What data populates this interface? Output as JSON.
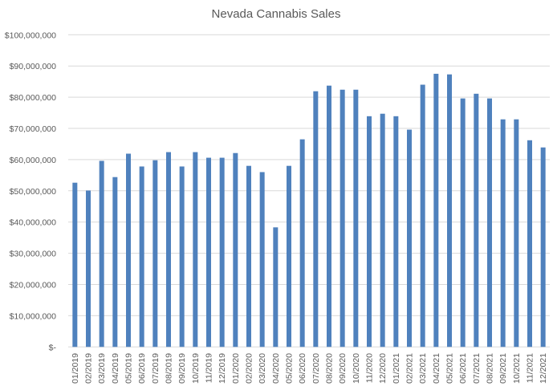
{
  "chart_data": {
    "type": "bar",
    "title": "Nevada Cannabis Sales",
    "xlabel": "",
    "ylabel": "",
    "ylim": [
      0,
      100000000
    ],
    "grid": true,
    "color": "#4f81bd",
    "y_ticks": [
      0,
      10000000,
      20000000,
      30000000,
      40000000,
      50000000,
      60000000,
      70000000,
      80000000,
      90000000,
      100000000
    ],
    "y_tick_labels": [
      "$-",
      "$10,000,000",
      "$20,000,000",
      "$30,000,000",
      "$40,000,000",
      "$50,000,000",
      "$60,000,000",
      "$70,000,000",
      "$80,000,000",
      "$90,000,000",
      "$100,000,000"
    ],
    "categories": [
      "01/2019",
      "02/2019",
      "03/2019",
      "04/2019",
      "05/2019",
      "06/2019",
      "07/2019",
      "08/2019",
      "09/2019",
      "10/2019",
      "11/2019",
      "12/2019",
      "01/2020",
      "02/2020",
      "03/2020",
      "04/2020",
      "05/2020",
      "06/2020",
      "07/2020",
      "08/2020",
      "09/2020",
      "10/2020",
      "11/2020",
      "12/2020",
      "01/2021",
      "02/2021",
      "03/2021",
      "04/2021",
      "05/2021",
      "06/2021",
      "07/2021",
      "08/2021",
      "09/2021",
      "10/2021",
      "11/2021",
      "12/2021"
    ],
    "values": [
      52600000,
      50100000,
      59600000,
      54400000,
      61900000,
      57800000,
      59800000,
      62400000,
      57800000,
      62400000,
      60600000,
      60600000,
      62100000,
      58000000,
      56000000,
      38300000,
      58000000,
      66500000,
      81900000,
      83700000,
      82400000,
      82400000,
      73900000,
      74700000,
      73900000,
      69600000,
      84000000,
      87500000,
      87300000,
      79600000,
      81100000,
      79600000,
      72900000,
      72900000,
      66200000,
      63900000
    ]
  }
}
